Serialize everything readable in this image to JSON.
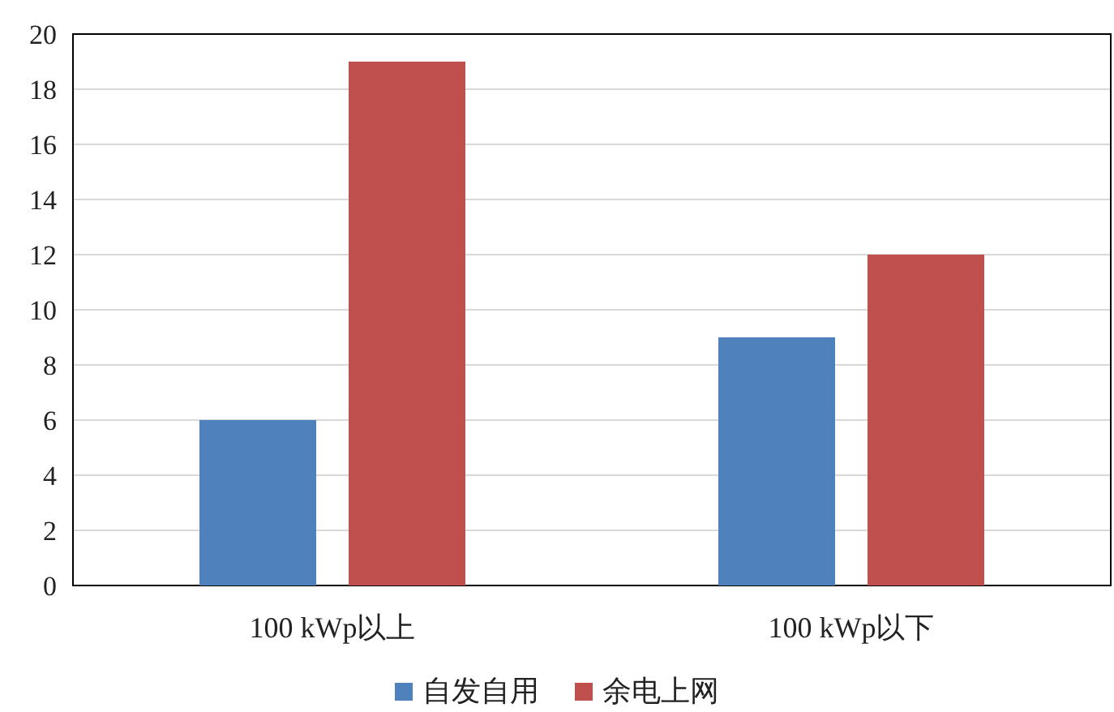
{
  "chart_data": {
    "type": "bar",
    "categories": [
      "100 kWp以上",
      "100 kWp以下"
    ],
    "series": [
      {
        "name": "自发自用",
        "color": "#4f81bd",
        "values": [
          6,
          9
        ]
      },
      {
        "name": "余电上网",
        "color": "#c0504d",
        "values": [
          19,
          12
        ]
      }
    ],
    "ylim": [
      0,
      20
    ],
    "yticks": [
      0,
      2,
      4,
      6,
      8,
      10,
      12,
      14,
      16,
      18,
      20
    ],
    "grid": "y",
    "legend": "bottom"
  }
}
